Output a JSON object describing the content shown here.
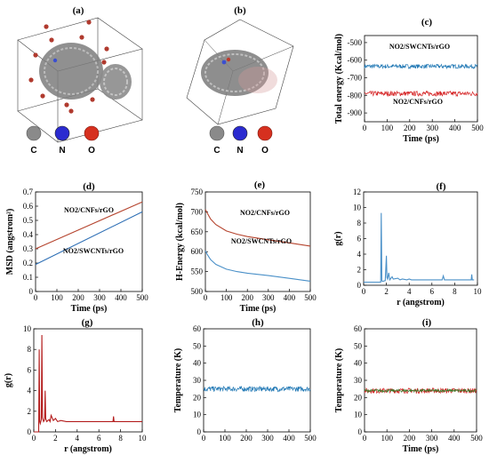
{
  "panel_labels": [
    "(a)",
    "(b)",
    "(c)",
    "(d)",
    "(e)",
    "(f)",
    "(g)",
    "(h)",
    "(i)"
  ],
  "atom_legend": [
    {
      "label": "C",
      "color": "#8a8a8a"
    },
    {
      "label": "N",
      "color": "#2b2bd0"
    },
    {
      "label": "O",
      "color": "#d6301f"
    }
  ],
  "chart_data": [
    {
      "id": "c",
      "type": "line",
      "title": "",
      "xlabel": "Time (ps)",
      "ylabel": "Total energy (Kcal/mol)",
      "xlim": [
        0,
        500
      ],
      "ylim": [
        -950,
        -460
      ],
      "xticks": [
        0,
        100,
        200,
        300,
        400,
        500
      ],
      "yticks": [
        -500,
        -600,
        -700,
        -800,
        -900
      ],
      "series": [
        {
          "name": "NO2/SWCNTs/rGO",
          "color": "#1f77b4",
          "mean": -635,
          "noise": 12
        },
        {
          "name": "NO2/CNFs/rGO",
          "color": "#d62728",
          "mean": -790,
          "noise": 14
        }
      ]
    },
    {
      "id": "d",
      "type": "line",
      "title": "",
      "xlabel": "Time (ps)",
      "ylabel": "MSD (angstrom²)",
      "xlim": [
        0,
        500
      ],
      "ylim": [
        0,
        0.7
      ],
      "xticks": [
        0,
        100,
        200,
        300,
        400,
        500
      ],
      "yticks": [
        0,
        0.1,
        0.2,
        0.3,
        0.4,
        0.5,
        0.6,
        0.7
      ],
      "series": [
        {
          "name": "NO2/CNFs/rGO",
          "color": "#b5442e",
          "x": [
            0,
            500
          ],
          "y": [
            0.3,
            0.63
          ]
        },
        {
          "name": "NO2/SWCNTs/rGO",
          "color": "#2e6fb5",
          "x": [
            0,
            500
          ],
          "y": [
            0.19,
            0.56
          ]
        }
      ]
    },
    {
      "id": "e",
      "type": "line",
      "title": "",
      "xlabel": "Time (ps)",
      "ylabel": "H-Energy (kcal/mol)",
      "xlim": [
        0,
        500
      ],
      "ylim": [
        500,
        750
      ],
      "xticks": [
        0,
        100,
        200,
        300,
        400,
        500
      ],
      "yticks": [
        500,
        550,
        600,
        650,
        700,
        750
      ],
      "series": [
        {
          "name": "NO2/CNFs/rGO",
          "color": "#b5442e",
          "x": [
            0,
            10,
            25,
            50,
            100,
            150,
            200,
            300,
            400,
            500
          ],
          "y": [
            706,
            696,
            682,
            668,
            652,
            644,
            638,
            630,
            622,
            614
          ]
        },
        {
          "name": "NO2/SWCNTs/rGO",
          "color": "#4a90c8",
          "x": [
            0,
            10,
            25,
            50,
            100,
            150,
            200,
            300,
            400,
            500
          ],
          "y": [
            602,
            592,
            580,
            568,
            556,
            550,
            546,
            540,
            533,
            526
          ]
        }
      ]
    },
    {
      "id": "f",
      "type": "line",
      "title": "",
      "xlabel": "r (angstrom)",
      "ylabel": "g(r)",
      "xlim": [
        0,
        10
      ],
      "ylim": [
        0,
        12
      ],
      "xticks": [
        0,
        2,
        4,
        6,
        8,
        10
      ],
      "yticks": [
        0,
        2,
        4,
        6,
        8,
        10,
        12
      ],
      "series": [
        {
          "name": "",
          "color": "#4a90c8",
          "x": [
            0,
            1.5,
            1.55,
            1.6,
            1.65,
            1.9,
            2.0,
            2.05,
            2.1,
            2.2,
            2.3,
            2.5,
            2.6,
            3.0,
            3.2,
            3.4,
            3.8,
            4.0,
            4.2,
            5.0,
            6.9,
            7.0,
            7.1,
            9.0,
            9.45,
            9.5,
            9.55,
            9.7
          ],
          "y": [
            0.4,
            0.4,
            9.3,
            0.6,
            0.5,
            0.6,
            3.8,
            1.0,
            0.8,
            1.6,
            0.7,
            1.1,
            0.8,
            0.9,
            0.7,
            0.8,
            0.7,
            0.8,
            0.7,
            0.7,
            0.7,
            1.2,
            0.7,
            0.7,
            0.7,
            1.4,
            0.7,
            0.7
          ]
        }
      ]
    },
    {
      "id": "g",
      "type": "line",
      "title": "",
      "xlabel": "r (angstrom)",
      "ylabel": "g(r)",
      "xlim": [
        0,
        10
      ],
      "ylim": [
        0,
        10
      ],
      "xticks": [
        0,
        2,
        4,
        6,
        8,
        10
      ],
      "yticks": [
        0,
        2,
        4,
        6,
        8,
        10
      ],
      "series": [
        {
          "name": "",
          "color": "#b31b1b",
          "x": [
            0,
            0.45,
            0.5,
            0.55,
            0.6,
            0.7,
            0.75,
            0.8,
            0.9,
            1.0,
            1.05,
            1.1,
            1.2,
            1.4,
            1.5,
            1.6,
            1.8,
            2.0,
            2.2,
            2.5,
            3.0,
            5.0,
            7.3,
            7.35,
            7.4,
            10.0
          ],
          "y": [
            0.0,
            0.0,
            8.0,
            1.0,
            0.8,
            1.2,
            9.4,
            1.4,
            1.0,
            1.2,
            4.0,
            1.3,
            1.0,
            1.2,
            1.0,
            1.6,
            1.1,
            1.3,
            1.0,
            1.1,
            1.0,
            1.0,
            1.0,
            1.5,
            1.0,
            1.0
          ]
        }
      ]
    },
    {
      "id": "h",
      "type": "line",
      "title": "",
      "xlabel": "",
      "ylabel": "Temperature (K)",
      "xlim": [
        0,
        500
      ],
      "ylim": [
        0,
        60
      ],
      "xticks": [
        0,
        100,
        200,
        300,
        400,
        500
      ],
      "yticks": [
        0,
        10,
        20,
        30,
        40,
        50,
        60
      ],
      "series": [
        {
          "name": "",
          "color": "#1f77b4",
          "mean": 25,
          "noise": 1.5
        }
      ]
    },
    {
      "id": "i",
      "type": "line",
      "title": "",
      "xlabel": "Time (ps)",
      "ylabel": "Temperature (K)",
      "xlim": [
        0,
        500
      ],
      "ylim": [
        0,
        60
      ],
      "xticks": [
        0,
        100,
        200,
        300,
        400,
        500
      ],
      "yticks": [
        0,
        10,
        20,
        30,
        40,
        50,
        60
      ],
      "series": [
        {
          "name": "",
          "color": "#d62728",
          "mean": 24,
          "noise": 1.5
        },
        {
          "name": "",
          "color": "#3a7a2a",
          "mean": 24,
          "noise": 0.8
        }
      ]
    }
  ]
}
